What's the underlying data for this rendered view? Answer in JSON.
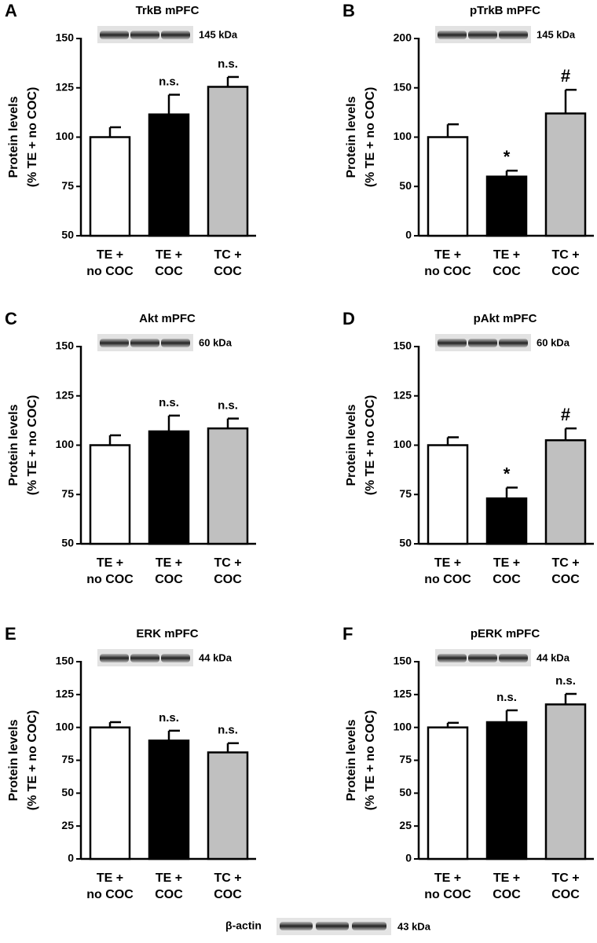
{
  "chart_data": [
    {
      "type": "bar",
      "panel": "A",
      "title": "TrkB mPFC",
      "ylabel": [
        "Protein levels",
        "(% TE + no COC)"
      ],
      "blot_label": "145 kDa",
      "categories": [
        [
          "TE +",
          "no COC"
        ],
        [
          "TE +",
          "COC"
        ],
        [
          "TC +",
          "COC"
        ]
      ],
      "values": [
        100,
        111.5,
        125.5
      ],
      "errors": [
        5,
        10,
        5
      ],
      "colors": [
        "#ffffff",
        "#000000",
        "#c0c0c0"
      ],
      "annotations": [
        null,
        "n.s.",
        "n.s."
      ],
      "ylim": [
        50,
        150
      ],
      "yticks": [
        50,
        75,
        100,
        125,
        150
      ]
    },
    {
      "type": "bar",
      "panel": "B",
      "title": "pTrkB mPFC",
      "ylabel": [
        "Protein levels",
        "(% TE + no COC)"
      ],
      "blot_label": "145 kDa",
      "categories": [
        [
          "TE +",
          "no COC"
        ],
        [
          "TE +",
          "COC"
        ],
        [
          "TC +",
          "COC"
        ]
      ],
      "values": [
        100,
        60,
        124
      ],
      "errors": [
        13,
        6,
        24
      ],
      "colors": [
        "#ffffff",
        "#000000",
        "#c0c0c0"
      ],
      "annotations": [
        null,
        "*",
        "#"
      ],
      "ylim": [
        0,
        200
      ],
      "yticks": [
        0,
        50,
        100,
        150,
        200
      ]
    },
    {
      "type": "bar",
      "panel": "C",
      "title": "Akt mPFC",
      "ylabel": [
        "Protein levels",
        "(% TE + no COC)"
      ],
      "blot_label": "60 kDa",
      "categories": [
        [
          "TE +",
          "no COC"
        ],
        [
          "TE +",
          "COC"
        ],
        [
          "TC +",
          "COC"
        ]
      ],
      "values": [
        100,
        107,
        108.5
      ],
      "errors": [
        5,
        8,
        5
      ],
      "colors": [
        "#ffffff",
        "#000000",
        "#c0c0c0"
      ],
      "annotations": [
        null,
        "n.s.",
        "n.s."
      ],
      "ylim": [
        50,
        150
      ],
      "yticks": [
        50,
        75,
        100,
        125,
        150
      ]
    },
    {
      "type": "bar",
      "panel": "D",
      "title": "pAkt mPFC",
      "ylabel": [
        "Protein levels",
        "(% TE + no COC)"
      ],
      "blot_label": "60 kDa",
      "categories": [
        [
          "TE +",
          "no COC"
        ],
        [
          "TE +",
          "COC"
        ],
        [
          "TC +",
          "COC"
        ]
      ],
      "values": [
        100,
        73,
        102.5
      ],
      "errors": [
        4,
        5.5,
        6
      ],
      "colors": [
        "#ffffff",
        "#000000",
        "#c0c0c0"
      ],
      "annotations": [
        null,
        "*",
        "#"
      ],
      "ylim": [
        50,
        150
      ],
      "yticks": [
        50,
        75,
        100,
        125,
        150
      ]
    },
    {
      "type": "bar",
      "panel": "E",
      "title": "ERK mPFC",
      "ylabel": [
        "Protein levels",
        "(% TE + no COC)"
      ],
      "blot_label": "44 kDa",
      "categories": [
        [
          "TE +",
          "no COC"
        ],
        [
          "TE +",
          "COC"
        ],
        [
          "TC +",
          "COC"
        ]
      ],
      "values": [
        100,
        90,
        81
      ],
      "errors": [
        4,
        7.5,
        7
      ],
      "colors": [
        "#ffffff",
        "#000000",
        "#c0c0c0"
      ],
      "annotations": [
        null,
        "n.s.",
        "n.s."
      ],
      "ylim": [
        0,
        150
      ],
      "yticks": [
        0,
        25,
        50,
        75,
        100,
        125,
        150
      ]
    },
    {
      "type": "bar",
      "panel": "F",
      "title": "pERK mPFC",
      "ylabel": [
        "Protein levels",
        "(% TE + no COC)"
      ],
      "blot_label": "44 kDa",
      "categories": [
        [
          "TE +",
          "no COC"
        ],
        [
          "TE +",
          "COC"
        ],
        [
          "TC +",
          "COC"
        ]
      ],
      "values": [
        100,
        104,
        117.5
      ],
      "errors": [
        3.5,
        9,
        8
      ],
      "colors": [
        "#ffffff",
        "#000000",
        "#c0c0c0"
      ],
      "annotations": [
        null,
        "n.s.",
        "n.s."
      ],
      "ylim": [
        0,
        150
      ],
      "yticks": [
        0,
        25,
        50,
        75,
        100,
        125,
        150
      ]
    }
  ],
  "footer": {
    "label": "β-actin",
    "blot_label": "43 kDa"
  }
}
